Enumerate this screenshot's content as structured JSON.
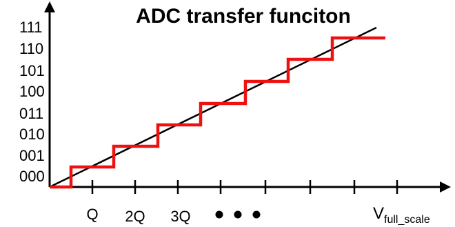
{
  "title": "ADC transfer funciton",
  "y_codes": [
    "000",
    "001",
    "010",
    "011",
    "100",
    "101",
    "110",
    "111"
  ],
  "x_labels": {
    "q1": "Q",
    "q2": "2Q",
    "q3": "3Q",
    "full_scale_main": "V",
    "full_scale_sub": "full_scale"
  },
  "colors": {
    "axes": "#000000",
    "ideal_line": "#000000",
    "staircase": "#ee1111",
    "text": "#000000"
  },
  "chart_data": {
    "type": "line",
    "title": "ADC transfer funciton",
    "xlabel": "",
    "ylabel": "",
    "x_tick_labels": [
      "Q",
      "2Q",
      "3Q",
      "V_full_scale"
    ],
    "y_tick_labels": [
      "000",
      "001",
      "010",
      "011",
      "100",
      "101",
      "110",
      "111"
    ],
    "series": [
      {
        "x": [
          0,
          0.5,
          0.5,
          1.5,
          1.5,
          2.5,
          2.5,
          3.5,
          3.5,
          4.5,
          4.5,
          5.5,
          5.5,
          6.5,
          6.5,
          7.8
        ],
        "y": [
          0,
          0,
          1,
          1,
          2,
          2,
          3,
          3,
          4,
          4,
          5,
          5,
          6,
          6,
          7,
          7
        ],
        "step": true
      },
      {
        "x": [
          0,
          7.7
        ],
        "y": [
          0,
          7.8
        ]
      }
    ]
  }
}
